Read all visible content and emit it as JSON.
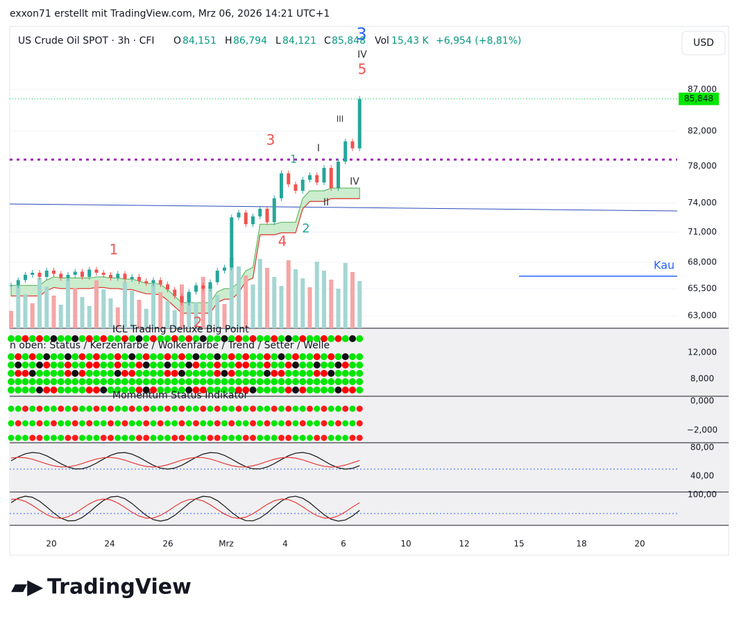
{
  "header": {
    "author": "exxon71 erstellt mit TradingView.com, Mrz 06, 2026 14:21 UTC+1"
  },
  "legend": {
    "symbol": "US Crude Oil SPOT · 3h · CFI",
    "o": "O",
    "o_val": "84,151",
    "h": "H",
    "h_val": "86,794",
    "l": "L",
    "l_val": "84,121",
    "c": "C",
    "c_val": "85,848",
    "vol": "Vol",
    "vol_val": "15,43 K",
    "change": "+6,954 (+8,81%)"
  },
  "currency": "USD",
  "last_price": "85,848",
  "kau": "Kau",
  "waves": [
    "3",
    "IV",
    "5",
    "3",
    "I",
    "1",
    "III",
    "IV",
    "II",
    "2",
    "4",
    "1",
    "2"
  ],
  "panels": {
    "p1_title": "ICL Trading Deluxe Big Point",
    "p1_sub": "n oben: Status / Kerzenfarbe / Wolkenfarbe / Trend / Setter / Welle",
    "p2_title": "Momentum Status Indikator",
    "p1_ticks": [
      "12,000",
      "8,000"
    ],
    "p2_ticks": [
      "0,000",
      "−2,000"
    ],
    "p3_ticks": [
      "80,00",
      "40,00"
    ],
    "p4_ticks": [
      "100,00"
    ]
  },
  "x_labels": [
    "20",
    "24",
    "26",
    "Mrz",
    "4",
    "6",
    "10",
    "12",
    "15",
    "18",
    "20"
  ],
  "brand": "TradingView",
  "chart_data": {
    "type": "candlestick",
    "color_up": "#26a69a",
    "color_down": "#ef5350",
    "log_scale": true,
    "values": [
      65.8,
      66.3,
      66.8,
      67.0,
      66.6,
      67.2,
      66.9,
      66.5,
      66.8,
      67.1,
      66.6,
      67.3,
      67.0,
      66.8,
      66.5,
      66.9,
      66.4,
      66.6,
      66.2,
      66.0,
      66.3,
      65.9,
      65.4,
      64.8,
      64.2,
      65.2,
      65.8,
      65.5,
      66.1,
      67.2,
      67.5,
      72.5,
      73.0,
      71.8,
      72.6,
      73.4,
      72.0,
      74.5,
      77.2,
      76.0,
      75.3,
      76.5,
      77.0,
      76.2,
      77.8,
      75.6,
      78.5,
      80.8,
      80.0,
      85.848
    ],
    "ylim": [
      61.9,
      95.2
    ],
    "yticks": [
      {
        "value": 87,
        "label": "87,000"
      },
      {
        "value": 82,
        "label": "82,000"
      },
      {
        "value": 78,
        "label": "78,000"
      },
      {
        "value": 74,
        "label": "74,000"
      },
      {
        "value": 71,
        "label": "71,000"
      },
      {
        "value": 68,
        "label": "68,000"
      },
      {
        "value": 65.5,
        "label": "65,500"
      },
      {
        "value": 63,
        "label": "63,000"
      }
    ]
  }
}
